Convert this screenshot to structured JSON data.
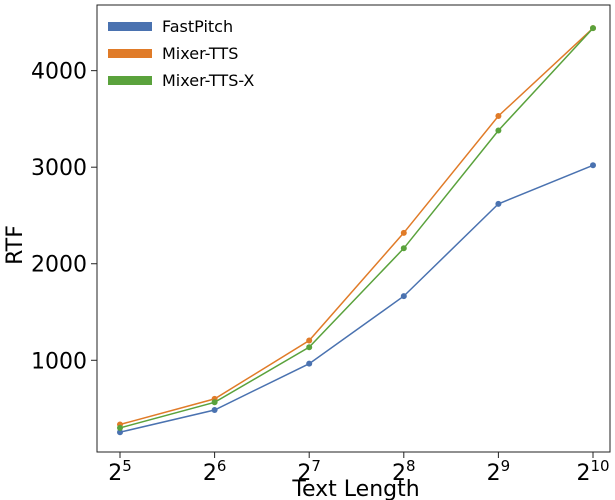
{
  "chart_data": {
    "type": "line",
    "title": "",
    "xlabel": "Text Length",
    "ylabel": "RTF",
    "x_scale": "log2",
    "x": [
      32,
      64,
      128,
      256,
      512,
      1024
    ],
    "x_tick_labels": [
      {
        "base": "2",
        "exp": "5"
      },
      {
        "base": "2",
        "exp": "6"
      },
      {
        "base": "2",
        "exp": "7"
      },
      {
        "base": "2",
        "exp": "8"
      },
      {
        "base": "2",
        "exp": "9"
      },
      {
        "base": "2",
        "exp": "10"
      }
    ],
    "y_ticks": [
      1000,
      2000,
      3000,
      4000
    ],
    "y_tick_labels": [
      "1000",
      "2000",
      "3000",
      "4000"
    ],
    "ylim": [
      50,
      4680
    ],
    "grid": false,
    "legend_position": "top-left",
    "series": [
      {
        "name": "FastPitch",
        "color": "#4a72b0",
        "values": [
          255,
          485,
          965,
          1665,
          2620,
          3020
        ]
      },
      {
        "name": "Mixer-TTS",
        "color": "#e07b28",
        "values": [
          335,
          600,
          1205,
          2320,
          3530,
          4440
        ]
      },
      {
        "name": "Mixer-TTS-X",
        "color": "#5aa23c",
        "values": [
          300,
          565,
          1135,
          2160,
          3380,
          4440
        ]
      }
    ]
  }
}
